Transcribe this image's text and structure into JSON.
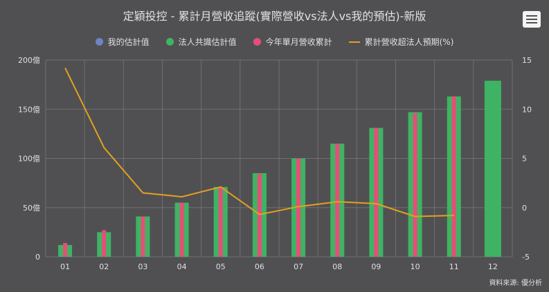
{
  "chart_data": {
    "type": "bar",
    "title": "定穎投控 - 累計月營收追蹤(實際營收vs法人vs我的預估)-新版",
    "categories": [
      "01",
      "02",
      "03",
      "04",
      "05",
      "06",
      "07",
      "08",
      "09",
      "10",
      "11",
      "12"
    ],
    "series": [
      {
        "name": "我的估計值",
        "color": "#6f83c6",
        "values": [
          null,
          null,
          null,
          null,
          null,
          null,
          null,
          null,
          null,
          null,
          null,
          null
        ]
      },
      {
        "name": "法人共識估計值",
        "color": "#3fb364",
        "values": [
          12,
          25,
          41,
          55,
          71,
          85,
          100,
          115,
          131,
          147,
          163,
          179
        ]
      },
      {
        "name": "今年單月營收累計",
        "color": "#e64e78",
        "values": [
          14,
          27,
          41,
          55,
          71,
          84,
          100,
          115,
          131,
          146,
          163,
          null
        ]
      },
      {
        "name": "累計營收超法人預期(%)",
        "color": "#e3a21c",
        "type": "line",
        "axis": "right",
        "values": [
          14.2,
          6.1,
          1.5,
          1.1,
          2.1,
          -0.7,
          0.1,
          0.6,
          0.4,
          -0.9,
          -0.8,
          null
        ]
      }
    ],
    "y_left": {
      "min": 0,
      "max": 200,
      "ticks": [
        "0",
        "50億",
        "100億",
        "150億",
        "200億"
      ],
      "tick_values": [
        0,
        50,
        100,
        150,
        200
      ]
    },
    "y_right": {
      "min": -5,
      "max": 15,
      "ticks": [
        "-5",
        "0",
        "5",
        "10",
        "15"
      ],
      "tick_values": [
        -5,
        0,
        5,
        10,
        15
      ]
    },
    "grid": true,
    "legend_position": "top"
  },
  "ui": {
    "menu_icon": "hamburger-icon",
    "credit": "資料來源: 優分析",
    "background": "#505053",
    "grid_color": "#707073"
  }
}
